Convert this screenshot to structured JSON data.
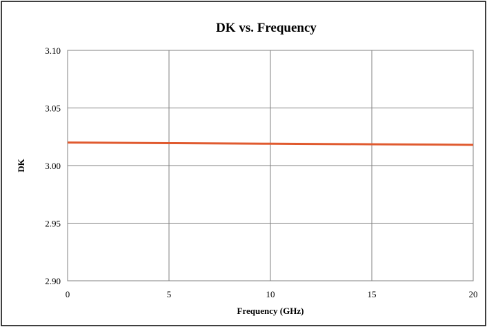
{
  "chart_data": {
    "type": "line",
    "title": "DK vs. Frequency",
    "xlabel": "Frequency (GHz)",
    "ylabel": "DK",
    "xlim": [
      0,
      20
    ],
    "ylim": [
      2.9,
      3.1
    ],
    "x_ticks": [
      "0",
      "5",
      "10",
      "15",
      "20"
    ],
    "y_ticks": [
      "3.10",
      "3.05",
      "3.00",
      "2.95",
      "2.90"
    ],
    "grid": true,
    "legend": "none",
    "series": [
      {
        "color": "#e05a2f",
        "x": [
          0,
          5,
          10,
          15,
          20
        ],
        "y": [
          3.02,
          3.0195,
          3.019,
          3.0185,
          3.018
        ]
      }
    ]
  }
}
